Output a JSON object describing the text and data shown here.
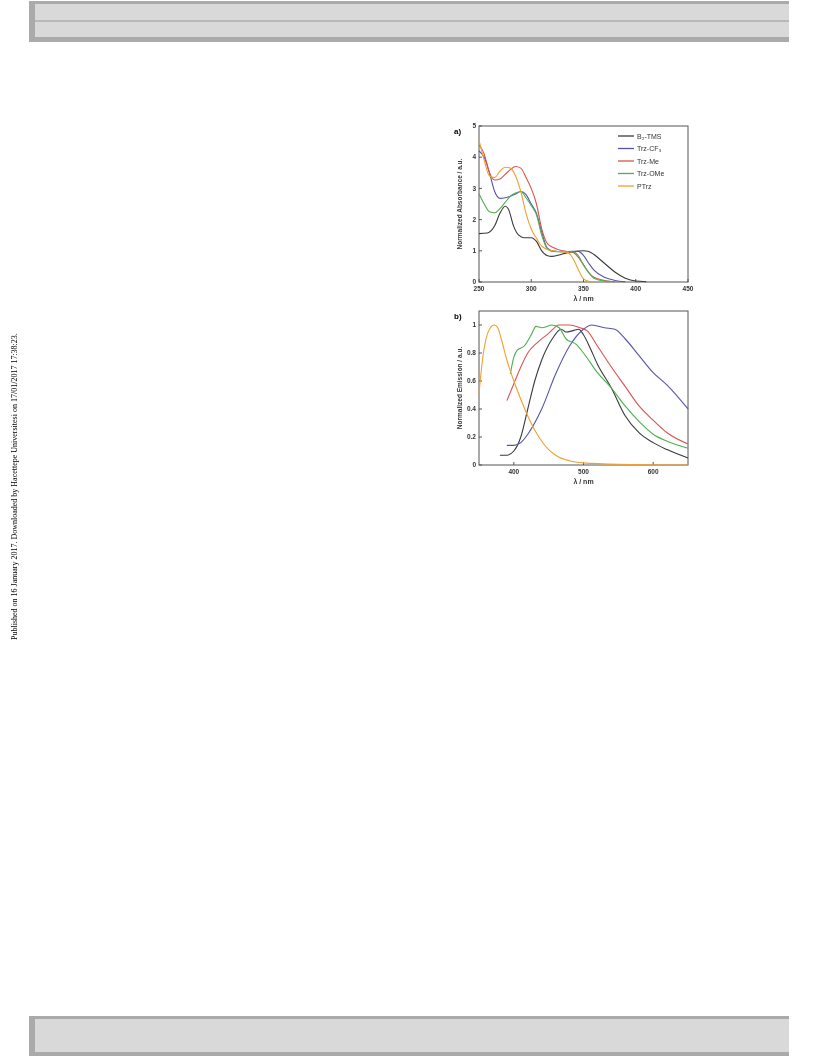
{
  "chart_data": [
    {
      "type": "line",
      "title": "a)",
      "xlabel": "λ / nm",
      "ylabel": "Normalized Absorbance / a.u.",
      "xlim": [
        250,
        450
      ],
      "ylim": [
        0,
        5
      ],
      "xticks": [
        250,
        300,
        350,
        400,
        450
      ],
      "yticks": [
        0,
        1,
        2,
        3,
        4,
        5
      ],
      "legend": "top right",
      "grid": false,
      "marker": "none",
      "line_style": "solid",
      "annotations": [
        "Published on 16 January 2017. Downloaded by Hacettepe Universitesi on 17/01/2017 17:38:23."
      ],
      "series": [
        {
          "name": "B₂-TMS",
          "color": "#3a3a3a",
          "x": [
            250,
            258,
            265,
            270,
            275,
            278,
            283,
            288,
            293,
            300,
            305,
            310,
            315,
            320,
            330,
            340,
            350,
            355,
            360,
            370,
            380,
            390,
            400,
            410
          ],
          "values": [
            1.55,
            1.57,
            1.8,
            2.2,
            2.43,
            2.35,
            1.8,
            1.5,
            1.42,
            1.42,
            1.3,
            1.0,
            0.85,
            0.82,
            0.9,
            0.97,
            1.0,
            0.98,
            0.88,
            0.6,
            0.32,
            0.12,
            0.03,
            0.01
          ]
        },
        {
          "name": "Trz-CF₃",
          "color": "#5555aa",
          "x": [
            250,
            255,
            260,
            265,
            270,
            275,
            280,
            285,
            290,
            295,
            300,
            305,
            310,
            315,
            320,
            330,
            340,
            345,
            350,
            355,
            360,
            370,
            380,
            390
          ],
          "values": [
            4.2,
            4.0,
            3.5,
            2.9,
            2.68,
            2.7,
            2.75,
            2.82,
            2.9,
            2.8,
            2.5,
            2.2,
            1.6,
            1.1,
            1.0,
            0.97,
            0.98,
            0.98,
            0.85,
            0.6,
            0.38,
            0.15,
            0.05,
            0.01
          ]
        },
        {
          "name": "Trz-Me",
          "color": "#d9534f",
          "x": [
            250,
            255,
            260,
            265,
            270,
            275,
            280,
            285,
            290,
            295,
            300,
            305,
            310,
            315,
            320,
            330,
            340,
            345,
            350,
            355,
            360,
            370,
            380
          ],
          "values": [
            4.4,
            4.1,
            3.5,
            3.27,
            3.3,
            3.45,
            3.6,
            3.7,
            3.65,
            3.35,
            3.0,
            2.5,
            1.7,
            1.25,
            1.12,
            1.0,
            0.95,
            0.8,
            0.55,
            0.3,
            0.15,
            0.05,
            0.01
          ]
        },
        {
          "name": "Trz-OMe",
          "color": "#4caf50",
          "x": [
            250,
            255,
            260,
            265,
            270,
            275,
            280,
            285,
            290,
            295,
            300,
            305,
            310,
            315,
            320,
            330,
            340,
            345,
            350,
            355,
            360,
            370,
            380
          ],
          "values": [
            2.83,
            2.5,
            2.25,
            2.22,
            2.35,
            2.55,
            2.75,
            2.85,
            2.9,
            2.7,
            2.45,
            2.15,
            1.5,
            1.08,
            0.98,
            0.97,
            0.97,
            0.85,
            0.55,
            0.3,
            0.12,
            0.03,
            0.01
          ]
        },
        {
          "name": "PTrz",
          "color": "#f0a030",
          "x": [
            250,
            255,
            260,
            265,
            270,
            275,
            280,
            285,
            290,
            295,
            300,
            305,
            310,
            320,
            330,
            335,
            340,
            345,
            350,
            355,
            360
          ],
          "values": [
            4.55,
            3.9,
            3.4,
            3.35,
            3.55,
            3.68,
            3.65,
            3.4,
            2.9,
            2.2,
            1.7,
            1.4,
            1.15,
            1.0,
            0.97,
            0.95,
            0.75,
            0.4,
            0.1,
            0.02,
            0
          ]
        }
      ]
    },
    {
      "type": "line",
      "title": "b)",
      "xlabel": "λ / nm",
      "ylabel": "Normalized Emission / a.u.",
      "xlim": [
        350,
        650
      ],
      "ylim": [
        0,
        1.1
      ],
      "xticks": [
        400,
        500,
        600
      ],
      "yticks": [
        0.0,
        0.2,
        0.4,
        0.6,
        0.8,
        1.0
      ],
      "legend": false,
      "grid": false,
      "marker": "none",
      "line_style": "solid",
      "series": [
        {
          "color": "#3a3a3a",
          "x": [
            380,
            390,
            400,
            410,
            420,
            430,
            440,
            455,
            468,
            475,
            485,
            493,
            500,
            510,
            520,
            540,
            560,
            580,
            600,
            620,
            650
          ],
          "values": [
            0.07,
            0.07,
            0.1,
            0.2,
            0.4,
            0.6,
            0.75,
            0.9,
            0.97,
            0.95,
            0.96,
            0.97,
            0.93,
            0.83,
            0.72,
            0.55,
            0.35,
            0.23,
            0.16,
            0.11,
            0.05
          ]
        },
        {
          "color": "#5555aa",
          "x": [
            390,
            400,
            410,
            420,
            440,
            460,
            480,
            500,
            512,
            530,
            545,
            560,
            580,
            600,
            620,
            650
          ],
          "values": [
            0.14,
            0.14,
            0.16,
            0.22,
            0.4,
            0.65,
            0.85,
            0.97,
            1.0,
            0.98,
            0.97,
            0.9,
            0.78,
            0.66,
            0.57,
            0.4
          ]
        },
        {
          "color": "#d9534f",
          "x": [
            390,
            400,
            410,
            420,
            435,
            450,
            465,
            480,
            495,
            505,
            520,
            540,
            560,
            580,
            600,
            620,
            650
          ],
          "values": [
            0.46,
            0.58,
            0.7,
            0.8,
            0.88,
            0.94,
            1.0,
            1.0,
            0.98,
            0.96,
            0.85,
            0.7,
            0.56,
            0.42,
            0.32,
            0.23,
            0.15
          ]
        },
        {
          "color": "#4caf50",
          "x": [
            395,
            400,
            405,
            415,
            425,
            432,
            440,
            455,
            465,
            475,
            490,
            500,
            520,
            540,
            560,
            580,
            600,
            620,
            650
          ],
          "values": [
            0.65,
            0.77,
            0.82,
            0.85,
            0.93,
            0.99,
            0.98,
            1.0,
            0.98,
            0.9,
            0.86,
            0.8,
            0.66,
            0.55,
            0.42,
            0.31,
            0.22,
            0.17,
            0.12
          ]
        },
        {
          "color": "#f0a030",
          "x": [
            350,
            355,
            360,
            365,
            372,
            377,
            382,
            390,
            400,
            410,
            420,
            430,
            440,
            450,
            460,
            480,
            500,
            550,
            650
          ],
          "values": [
            0.51,
            0.75,
            0.9,
            0.97,
            1.0,
            0.98,
            0.9,
            0.75,
            0.6,
            0.47,
            0.35,
            0.25,
            0.17,
            0.11,
            0.07,
            0.03,
            0.015,
            0.005,
            0
          ]
        }
      ]
    }
  ]
}
